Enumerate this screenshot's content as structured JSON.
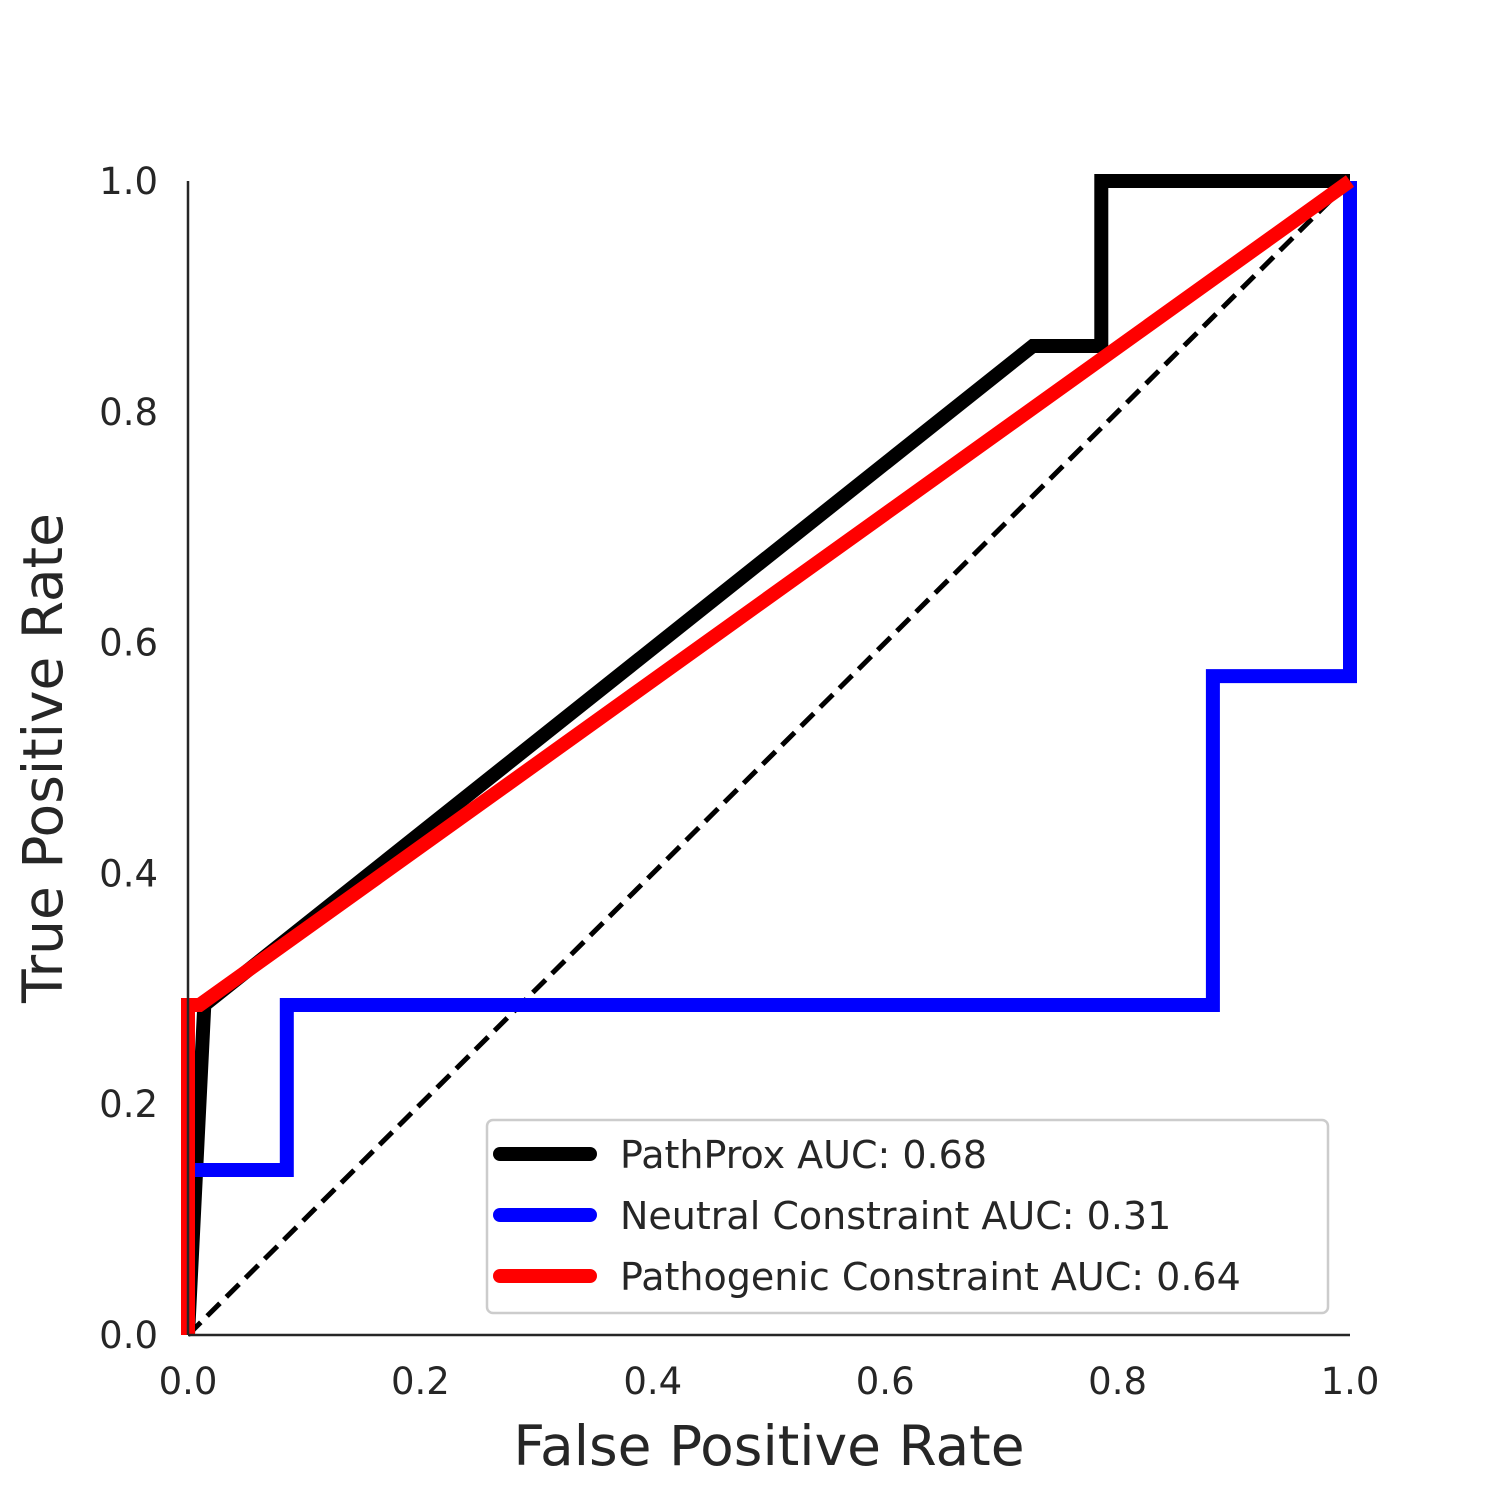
{
  "chart_data": {
    "type": "line",
    "title": "",
    "xlabel": "False Positive Rate",
    "ylabel": "True Positive Rate",
    "xlim": [
      0,
      1
    ],
    "ylim": [
      0,
      1
    ],
    "x_ticks": [
      "0.0",
      "0.2",
      "0.4",
      "0.6",
      "0.8",
      "1.0"
    ],
    "y_ticks": [
      "0.0",
      "0.2",
      "0.4",
      "0.6",
      "0.8",
      "1.0"
    ],
    "grid": false,
    "legend_position": "lower-right",
    "series": [
      {
        "name": "PathProx AUC:  0.68",
        "color": "#000000",
        "x": [
          0.0,
          0.014,
          0.727,
          0.786,
          0.786,
          1.0
        ],
        "y": [
          0.0,
          0.286,
          0.857,
          0.857,
          1.0,
          1.0
        ]
      },
      {
        "name": "Neutral Constraint AUC:  0.31",
        "color": "#0000ff",
        "x": [
          0.0,
          0.0,
          0.085,
          0.085,
          0.882,
          0.882,
          1.0,
          1.0
        ],
        "y": [
          0.0,
          0.143,
          0.143,
          0.286,
          0.286,
          0.571,
          0.571,
          1.0
        ]
      },
      {
        "name": "Pathogenic Constraint AUC:  0.64",
        "color": "#ff0000",
        "x": [
          0.0,
          0.0,
          0.01,
          1.0
        ],
        "y": [
          0.0,
          0.286,
          0.286,
          1.0
        ]
      }
    ],
    "reference_line": {
      "color": "#000000",
      "style": "dashed",
      "x": [
        0,
        1
      ],
      "y": [
        0,
        1
      ]
    }
  }
}
